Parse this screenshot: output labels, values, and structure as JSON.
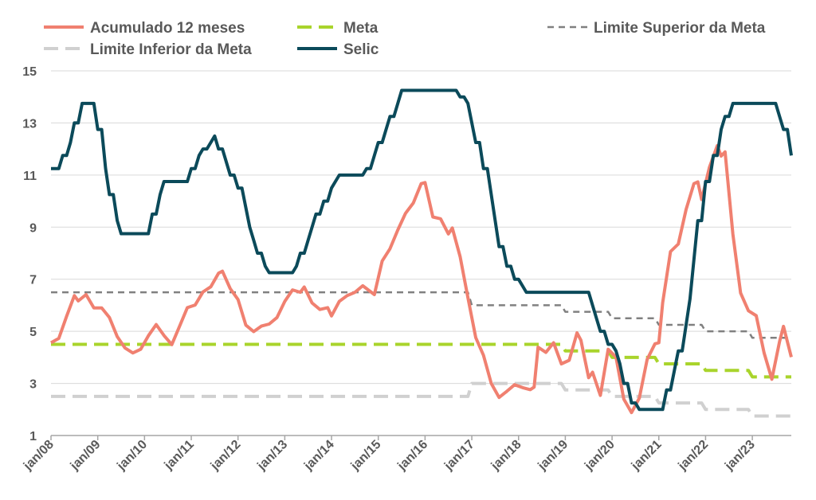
{
  "chart_data": {
    "type": "line",
    "title": "",
    "xlabel": "",
    "ylabel": "",
    "ylim": [
      1,
      15
    ],
    "yticks": [
      1,
      3,
      5,
      7,
      9,
      11,
      13,
      15
    ],
    "x_tick_labels": [
      "jan/08",
      "jan/09",
      "jan/10",
      "jan/11",
      "jan/12",
      "jan/13",
      "jan/14",
      "jan/15",
      "jan/16",
      "jan/17",
      "jan/18",
      "jan/19",
      "jan/20",
      "jan/21",
      "jan/22",
      "jan/23"
    ],
    "x_range": [
      "2008-01",
      "2023-11"
    ],
    "grid": "horizontal",
    "legend_position": "top",
    "series": [
      {
        "name": "Acumulado 12 meses",
        "color": "#F08070",
        "style": "solid",
        "points": [
          [
            "2008-01",
            4.56
          ],
          [
            "2008-03",
            4.73
          ],
          [
            "2008-05",
            5.58
          ],
          [
            "2008-07",
            6.37
          ],
          [
            "2008-08",
            6.17
          ],
          [
            "2008-10",
            6.41
          ],
          [
            "2008-12",
            5.9
          ],
          [
            "2009-02",
            5.9
          ],
          [
            "2009-04",
            5.53
          ],
          [
            "2009-06",
            4.8
          ],
          [
            "2009-08",
            4.36
          ],
          [
            "2009-10",
            4.17
          ],
          [
            "2009-12",
            4.31
          ],
          [
            "2010-02",
            4.83
          ],
          [
            "2010-04",
            5.26
          ],
          [
            "2010-06",
            4.84
          ],
          [
            "2010-08",
            4.49
          ],
          [
            "2010-10",
            5.2
          ],
          [
            "2010-12",
            5.91
          ],
          [
            "2011-02",
            6.01
          ],
          [
            "2011-04",
            6.51
          ],
          [
            "2011-06",
            6.71
          ],
          [
            "2011-08",
            7.23
          ],
          [
            "2011-09",
            7.31
          ],
          [
            "2011-11",
            6.64
          ],
          [
            "2012-01",
            6.22
          ],
          [
            "2012-03",
            5.24
          ],
          [
            "2012-05",
            4.99
          ],
          [
            "2012-07",
            5.2
          ],
          [
            "2012-09",
            5.28
          ],
          [
            "2012-11",
            5.53
          ],
          [
            "2013-01",
            6.15
          ],
          [
            "2013-03",
            6.59
          ],
          [
            "2013-05",
            6.5
          ],
          [
            "2013-06",
            6.7
          ],
          [
            "2013-08",
            6.09
          ],
          [
            "2013-10",
            5.84
          ],
          [
            "2013-12",
            5.91
          ],
          [
            "2014-01",
            5.59
          ],
          [
            "2014-03",
            6.15
          ],
          [
            "2014-05",
            6.37
          ],
          [
            "2014-07",
            6.5
          ],
          [
            "2014-09",
            6.75
          ],
          [
            "2014-12",
            6.41
          ],
          [
            "2015-02",
            7.7
          ],
          [
            "2015-04",
            8.17
          ],
          [
            "2015-06",
            8.89
          ],
          [
            "2015-08",
            9.53
          ],
          [
            "2015-10",
            9.93
          ],
          [
            "2015-12",
            10.67
          ],
          [
            "2016-01",
            10.71
          ],
          [
            "2016-03",
            9.39
          ],
          [
            "2016-05",
            9.32
          ],
          [
            "2016-07",
            8.74
          ],
          [
            "2016-08",
            8.97
          ],
          [
            "2016-10",
            7.87
          ],
          [
            "2016-12",
            6.29
          ],
          [
            "2017-02",
            4.76
          ],
          [
            "2017-04",
            4.08
          ],
          [
            "2017-06",
            3.0
          ],
          [
            "2017-08",
            2.46
          ],
          [
            "2017-10",
            2.7
          ],
          [
            "2017-12",
            2.95
          ],
          [
            "2018-02",
            2.84
          ],
          [
            "2018-04",
            2.76
          ],
          [
            "2018-05",
            2.86
          ],
          [
            "2018-06",
            4.39
          ],
          [
            "2018-08",
            4.19
          ],
          [
            "2018-10",
            4.56
          ],
          [
            "2018-12",
            3.75
          ],
          [
            "2019-02",
            3.89
          ],
          [
            "2019-04",
            4.94
          ],
          [
            "2019-05",
            4.66
          ],
          [
            "2019-07",
            3.22
          ],
          [
            "2019-08",
            3.43
          ],
          [
            "2019-10",
            2.54
          ],
          [
            "2019-12",
            4.31
          ],
          [
            "2020-02",
            4.01
          ],
          [
            "2020-04",
            2.4
          ],
          [
            "2020-06",
            1.88
          ],
          [
            "2020-08",
            2.44
          ],
          [
            "2020-10",
            3.92
          ],
          [
            "2020-12",
            4.52
          ],
          [
            "2021-01",
            4.56
          ],
          [
            "2021-02",
            6.1
          ],
          [
            "2021-04",
            8.06
          ],
          [
            "2021-06",
            8.35
          ],
          [
            "2021-08",
            9.68
          ],
          [
            "2021-10",
            10.67
          ],
          [
            "2021-11",
            10.74
          ],
          [
            "2021-12",
            10.06
          ],
          [
            "2022-02",
            11.3
          ],
          [
            "2022-04",
            12.13
          ],
          [
            "2022-05",
            11.73
          ],
          [
            "2022-06",
            11.89
          ],
          [
            "2022-08",
            8.73
          ],
          [
            "2022-10",
            6.47
          ],
          [
            "2022-12",
            5.79
          ],
          [
            "2023-02",
            5.6
          ],
          [
            "2023-04",
            4.18
          ],
          [
            "2023-06",
            3.16
          ],
          [
            "2023-08",
            4.61
          ],
          [
            "2023-09",
            5.19
          ],
          [
            "2023-11",
            4.01
          ]
        ]
      },
      {
        "name": "Meta",
        "color": "#A9D42C",
        "style": "dashed",
        "points": [
          [
            "2008-01",
            4.5
          ],
          [
            "2018-12",
            4.5
          ],
          [
            "2019-01",
            4.25
          ],
          [
            "2019-12",
            4.25
          ],
          [
            "2020-01",
            4.0
          ],
          [
            "2020-12",
            4.0
          ],
          [
            "2021-01",
            3.75
          ],
          [
            "2021-12",
            3.75
          ],
          [
            "2022-01",
            3.5
          ],
          [
            "2022-12",
            3.5
          ],
          [
            "2023-01",
            3.25
          ],
          [
            "2023-11",
            3.25
          ]
        ]
      },
      {
        "name": "Limite Superior da Meta",
        "color": "#808080",
        "style": "dashed-thin",
        "points": [
          [
            "2008-01",
            6.5
          ],
          [
            "2016-12",
            6.5
          ],
          [
            "2017-01",
            6.0
          ],
          [
            "2018-12",
            6.0
          ],
          [
            "2019-01",
            5.75
          ],
          [
            "2019-12",
            5.75
          ],
          [
            "2020-01",
            5.5
          ],
          [
            "2020-12",
            5.5
          ],
          [
            "2021-01",
            5.25
          ],
          [
            "2021-12",
            5.25
          ],
          [
            "2022-01",
            5.0
          ],
          [
            "2022-12",
            5.0
          ],
          [
            "2023-01",
            4.75
          ],
          [
            "2023-11",
            4.75
          ]
        ]
      },
      {
        "name": "Limite Inferior da Meta",
        "color": "#D0D0D0",
        "style": "dashed",
        "points": [
          [
            "2008-01",
            2.5
          ],
          [
            "2016-12",
            2.5
          ],
          [
            "2017-01",
            3.0
          ],
          [
            "2018-12",
            3.0
          ],
          [
            "2019-01",
            2.75
          ],
          [
            "2019-12",
            2.75
          ],
          [
            "2020-01",
            2.5
          ],
          [
            "2020-12",
            2.5
          ],
          [
            "2021-01",
            2.25
          ],
          [
            "2021-12",
            2.25
          ],
          [
            "2022-01",
            2.0
          ],
          [
            "2022-12",
            2.0
          ],
          [
            "2023-01",
            1.75
          ],
          [
            "2023-11",
            1.75
          ]
        ]
      },
      {
        "name": "Selic",
        "color": "#0B4A5A",
        "style": "solid",
        "points": [
          [
            "2008-01",
            11.25
          ],
          [
            "2008-03",
            11.25
          ],
          [
            "2008-04",
            11.75
          ],
          [
            "2008-05",
            11.75
          ],
          [
            "2008-06",
            12.25
          ],
          [
            "2008-07",
            13.0
          ],
          [
            "2008-08",
            13.0
          ],
          [
            "2008-09",
            13.75
          ],
          [
            "2008-11",
            13.75
          ],
          [
            "2008-12",
            13.75
          ],
          [
            "2009-01",
            12.75
          ],
          [
            "2009-02",
            12.75
          ],
          [
            "2009-03",
            11.25
          ],
          [
            "2009-04",
            10.25
          ],
          [
            "2009-05",
            10.25
          ],
          [
            "2009-06",
            9.25
          ],
          [
            "2009-07",
            8.75
          ],
          [
            "2009-12",
            8.75
          ],
          [
            "2010-01",
            8.75
          ],
          [
            "2010-02",
            8.75
          ],
          [
            "2010-03",
            9.5
          ],
          [
            "2010-04",
            9.5
          ],
          [
            "2010-05",
            10.25
          ],
          [
            "2010-06",
            10.75
          ],
          [
            "2010-12",
            10.75
          ],
          [
            "2011-01",
            11.25
          ],
          [
            "2011-02",
            11.25
          ],
          [
            "2011-03",
            11.75
          ],
          [
            "2011-04",
            12.0
          ],
          [
            "2011-05",
            12.0
          ],
          [
            "2011-06",
            12.25
          ],
          [
            "2011-07",
            12.5
          ],
          [
            "2011-08",
            12.0
          ],
          [
            "2011-09",
            12.0
          ],
          [
            "2011-10",
            11.5
          ],
          [
            "2011-11",
            11.0
          ],
          [
            "2011-12",
            11.0
          ],
          [
            "2012-01",
            10.5
          ],
          [
            "2012-02",
            10.5
          ],
          [
            "2012-03",
            9.75
          ],
          [
            "2012-04",
            9.0
          ],
          [
            "2012-05",
            8.5
          ],
          [
            "2012-06",
            8.0
          ],
          [
            "2012-07",
            8.0
          ],
          [
            "2012-08",
            7.5
          ],
          [
            "2012-09",
            7.25
          ],
          [
            "2012-12",
            7.25
          ],
          [
            "2013-01",
            7.25
          ],
          [
            "2013-02",
            7.25
          ],
          [
            "2013-03",
            7.25
          ],
          [
            "2013-04",
            7.5
          ],
          [
            "2013-05",
            8.0
          ],
          [
            "2013-06",
            8.0
          ],
          [
            "2013-07",
            8.5
          ],
          [
            "2013-08",
            9.0
          ],
          [
            "2013-09",
            9.5
          ],
          [
            "2013-10",
            9.5
          ],
          [
            "2013-11",
            10.0
          ],
          [
            "2013-12",
            10.0
          ],
          [
            "2014-01",
            10.5
          ],
          [
            "2014-02",
            10.75
          ],
          [
            "2014-03",
            11.0
          ],
          [
            "2014-09",
            11.0
          ],
          [
            "2014-10",
            11.25
          ],
          [
            "2014-11",
            11.25
          ],
          [
            "2014-12",
            11.75
          ],
          [
            "2015-01",
            12.25
          ],
          [
            "2015-02",
            12.25
          ],
          [
            "2015-03",
            12.75
          ],
          [
            "2015-04",
            13.25
          ],
          [
            "2015-05",
            13.25
          ],
          [
            "2015-06",
            13.75
          ],
          [
            "2015-07",
            14.25
          ],
          [
            "2016-09",
            14.25
          ],
          [
            "2016-10",
            14.0
          ],
          [
            "2016-11",
            14.0
          ],
          [
            "2016-12",
            13.75
          ],
          [
            "2017-01",
            13.0
          ],
          [
            "2017-02",
            12.25
          ],
          [
            "2017-03",
            12.25
          ],
          [
            "2017-04",
            11.25
          ],
          [
            "2017-05",
            11.25
          ],
          [
            "2017-06",
            10.25
          ],
          [
            "2017-07",
            9.25
          ],
          [
            "2017-08",
            8.25
          ],
          [
            "2017-09",
            8.25
          ],
          [
            "2017-10",
            7.5
          ],
          [
            "2017-11",
            7.5
          ],
          [
            "2017-12",
            7.0
          ],
          [
            "2018-01",
            7.0
          ],
          [
            "2018-02",
            6.75
          ],
          [
            "2018-03",
            6.5
          ],
          [
            "2019-07",
            6.5
          ],
          [
            "2019-08",
            6.0
          ],
          [
            "2019-09",
            5.5
          ],
          [
            "2019-10",
            5.0
          ],
          [
            "2019-11",
            5.0
          ],
          [
            "2019-12",
            4.5
          ],
          [
            "2020-01",
            4.5
          ],
          [
            "2020-02",
            4.25
          ],
          [
            "2020-03",
            3.75
          ],
          [
            "2020-04",
            3.0
          ],
          [
            "2020-05",
            3.0
          ],
          [
            "2020-06",
            2.25
          ],
          [
            "2020-07",
            2.25
          ],
          [
            "2020-08",
            2.0
          ],
          [
            "2021-02",
            2.0
          ],
          [
            "2021-03",
            2.75
          ],
          [
            "2021-04",
            2.75
          ],
          [
            "2021-05",
            3.5
          ],
          [
            "2021-06",
            4.25
          ],
          [
            "2021-07",
            4.25
          ],
          [
            "2021-08",
            5.25
          ],
          [
            "2021-09",
            6.25
          ],
          [
            "2021-10",
            7.75
          ],
          [
            "2021-11",
            9.25
          ],
          [
            "2021-12",
            9.25
          ],
          [
            "2022-01",
            10.75
          ],
          [
            "2022-02",
            10.75
          ],
          [
            "2022-03",
            11.75
          ],
          [
            "2022-04",
            11.75
          ],
          [
            "2022-05",
            12.75
          ],
          [
            "2022-06",
            13.25
          ],
          [
            "2022-07",
            13.25
          ],
          [
            "2022-08",
            13.75
          ],
          [
            "2023-07",
            13.75
          ],
          [
            "2023-08",
            13.25
          ],
          [
            "2023-09",
            12.75
          ],
          [
            "2023-10",
            12.75
          ],
          [
            "2023-11",
            11.75
          ]
        ]
      }
    ]
  }
}
